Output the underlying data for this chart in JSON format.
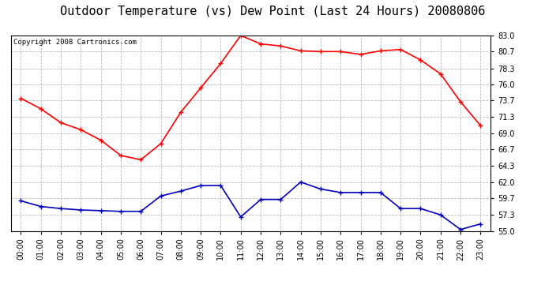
{
  "title": "Outdoor Temperature (vs) Dew Point (Last 24 Hours) 20080806",
  "copyright_text": "Copyright 2008 Cartronics.com",
  "hours": [
    "00:00",
    "01:00",
    "02:00",
    "03:00",
    "04:00",
    "05:00",
    "06:00",
    "07:00",
    "08:00",
    "09:00",
    "10:00",
    "11:00",
    "12:00",
    "13:00",
    "14:00",
    "15:00",
    "16:00",
    "17:00",
    "18:00",
    "19:00",
    "20:00",
    "21:00",
    "22:00",
    "23:00"
  ],
  "temp": [
    74.0,
    72.5,
    70.5,
    69.5,
    68.0,
    65.8,
    65.2,
    67.5,
    72.0,
    75.5,
    79.0,
    83.0,
    81.8,
    81.5,
    80.8,
    80.7,
    80.7,
    80.3,
    80.8,
    81.0,
    79.5,
    77.5,
    73.5,
    70.1
  ],
  "dew": [
    59.3,
    58.5,
    58.2,
    58.0,
    57.9,
    57.8,
    57.8,
    60.0,
    60.7,
    61.5,
    61.5,
    57.0,
    59.5,
    59.5,
    62.0,
    61.0,
    60.5,
    60.5,
    60.5,
    58.2,
    58.2,
    57.3,
    55.2,
    56.0
  ],
  "temp_color": "#ff0000",
  "dew_color": "#0000bb",
  "background_color": "#ffffff",
  "plot_bg_color": "#ffffff",
  "grid_color": "#bbbbbb",
  "ylim_min": 55.0,
  "ylim_max": 83.0,
  "yticks": [
    55.0,
    57.3,
    59.7,
    62.0,
    64.3,
    66.7,
    69.0,
    71.3,
    73.7,
    76.0,
    78.3,
    80.7,
    83.0
  ],
  "title_fontsize": 11,
  "axis_fontsize": 7,
  "copyright_fontsize": 6.5
}
